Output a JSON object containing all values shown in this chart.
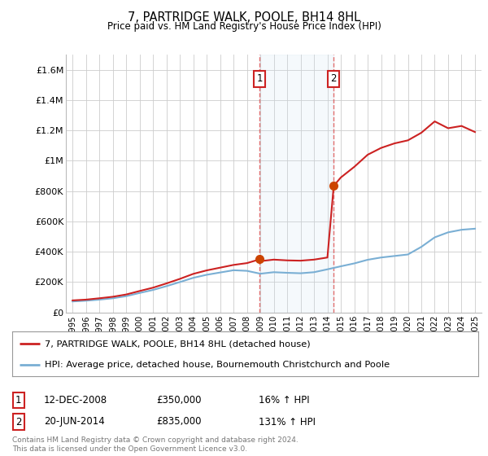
{
  "title": "7, PARTRIDGE WALK, POOLE, BH14 8HL",
  "subtitle": "Price paid vs. HM Land Registry's House Price Index (HPI)",
  "hpi_color": "#7aafd4",
  "sale_color": "#cc2222",
  "marker_color": "#cc4400",
  "highlight_fill": "#ddeeff",
  "highlight_border": "#cc2222",
  "dashed_color": "#e06060",
  "ylim": [
    0,
    1700000
  ],
  "yticks": [
    0,
    200000,
    400000,
    600000,
    800000,
    1000000,
    1200000,
    1400000,
    1600000
  ],
  "ytick_labels": [
    "£0",
    "£200K",
    "£400K",
    "£600K",
    "£800K",
    "£1M",
    "£1.2M",
    "£1.4M",
    "£1.6M"
  ],
  "xlim_start": 1994.5,
  "xlim_end": 2025.5,
  "xtick_years": [
    1995,
    1996,
    1997,
    1998,
    1999,
    2000,
    2001,
    2002,
    2003,
    2004,
    2005,
    2006,
    2007,
    2008,
    2009,
    2010,
    2011,
    2012,
    2013,
    2014,
    2015,
    2016,
    2017,
    2018,
    2019,
    2020,
    2021,
    2022,
    2023,
    2024,
    2025
  ],
  "sale1_x": 2008.95,
  "sale1_y": 350000,
  "sale1_label": "1",
  "sale2_x": 2014.47,
  "sale2_y": 835000,
  "sale2_label": "2",
  "legend_line1": "7, PARTRIDGE WALK, POOLE, BH14 8HL (detached house)",
  "legend_line2": "HPI: Average price, detached house, Bournemouth Christchurch and Poole",
  "table_entries": [
    {
      "num": "1",
      "date": "12-DEC-2008",
      "price": "£350,000",
      "change": "16% ↑ HPI"
    },
    {
      "num": "2",
      "date": "20-JUN-2014",
      "price": "£835,000",
      "change": "131% ↑ HPI"
    }
  ],
  "footer": "Contains HM Land Registry data © Crown copyright and database right 2024.\nThis data is licensed under the Open Government Licence v3.0.",
  "bg_color": "#ffffff",
  "grid_color": "#cccccc",
  "hpi_years": [
    1995,
    1996,
    1997,
    1998,
    1999,
    2000,
    2001,
    2002,
    2003,
    2004,
    2005,
    2006,
    2007,
    2008,
    2009,
    2010,
    2011,
    2012,
    2013,
    2014,
    2015,
    2016,
    2017,
    2018,
    2019,
    2020,
    2021,
    2022,
    2023,
    2024,
    2025
  ],
  "hpi_vals": [
    72000,
    77000,
    84000,
    93000,
    107000,
    128000,
    148000,
    173000,
    200000,
    228000,
    248000,
    263000,
    278000,
    274000,
    255000,
    265000,
    261000,
    258000,
    265000,
    284000,
    304000,
    323000,
    347000,
    362000,
    372000,
    382000,
    432000,
    495000,
    528000,
    545000,
    552000
  ],
  "sale_years": [
    1995,
    1996,
    1997,
    1998,
    1999,
    2000,
    2001,
    2002,
    2003,
    2004,
    2005,
    2006,
    2007,
    2008,
    2008.95,
    2009,
    2010,
    2011,
    2012,
    2013,
    2014,
    2014.47,
    2015,
    2016,
    2017,
    2018,
    2019,
    2020,
    2021,
    2022,
    2023,
    2024,
    2025
  ],
  "sale_vals": [
    79000,
    84000,
    93000,
    103000,
    118000,
    141000,
    163000,
    191000,
    221000,
    254000,
    277000,
    295000,
    313000,
    325000,
    350000,
    338000,
    348000,
    343000,
    341000,
    348000,
    362000,
    835000,
    890000,
    960000,
    1040000,
    1085000,
    1115000,
    1135000,
    1185000,
    1260000,
    1215000,
    1230000,
    1190000
  ]
}
